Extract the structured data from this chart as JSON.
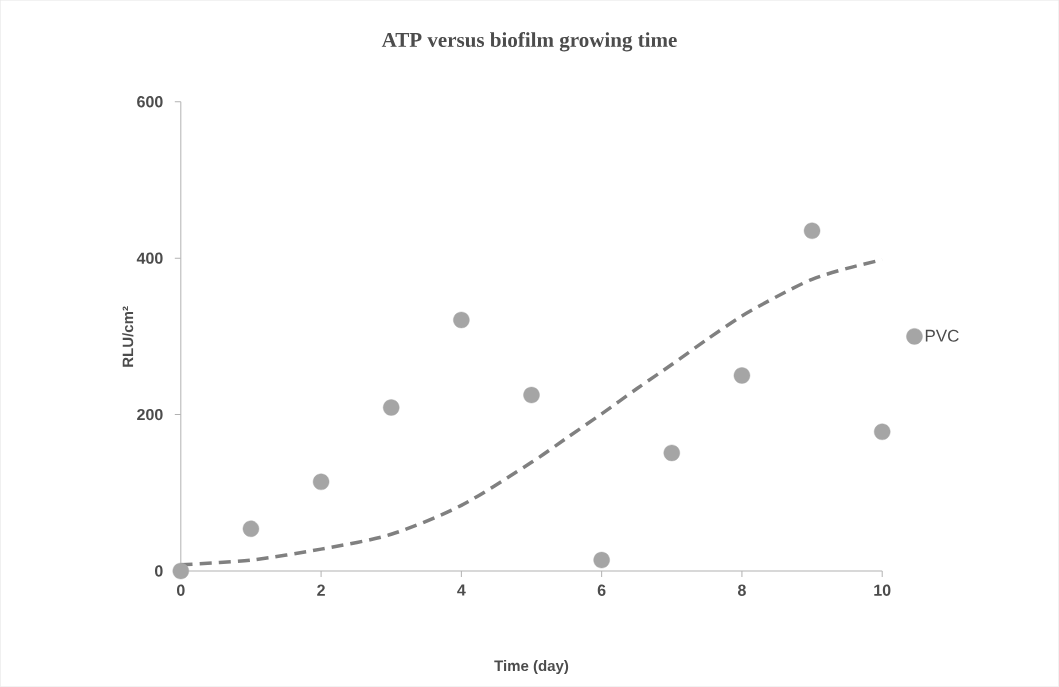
{
  "chart_data": {
    "type": "scatter",
    "title": "ATP versus biofilm growing time",
    "xlabel": "Time (day)",
    "ylabel": "RLU/cm²",
    "xlim": [
      0,
      10
    ],
    "ylim": [
      0,
      600
    ],
    "xticks": [
      0,
      2,
      4,
      6,
      8,
      10
    ],
    "yticks": [
      0,
      200,
      400,
      600
    ],
    "legend": "right",
    "series": [
      {
        "name": "PVC",
        "marker": "circle",
        "color": "#a5a5a5",
        "x": [
          0,
          1,
          2,
          3,
          4,
          5,
          6,
          7,
          8,
          9,
          10
        ],
        "values": [
          0,
          54,
          114,
          209,
          321,
          225,
          14,
          151,
          250,
          435,
          178
        ]
      },
      {
        "type": "line",
        "line_style": "dashed",
        "marker": "none",
        "color": "#808080",
        "x": [
          0,
          1,
          2,
          3,
          4,
          5,
          5.5,
          6,
          6.5,
          7,
          7.5,
          8,
          8.5,
          9,
          9.5,
          10
        ],
        "values": [
          8,
          14,
          28,
          47,
          84,
          139,
          170,
          201,
          233,
          264,
          296,
          326,
          351,
          373,
          387,
          398
        ]
      }
    ]
  }
}
